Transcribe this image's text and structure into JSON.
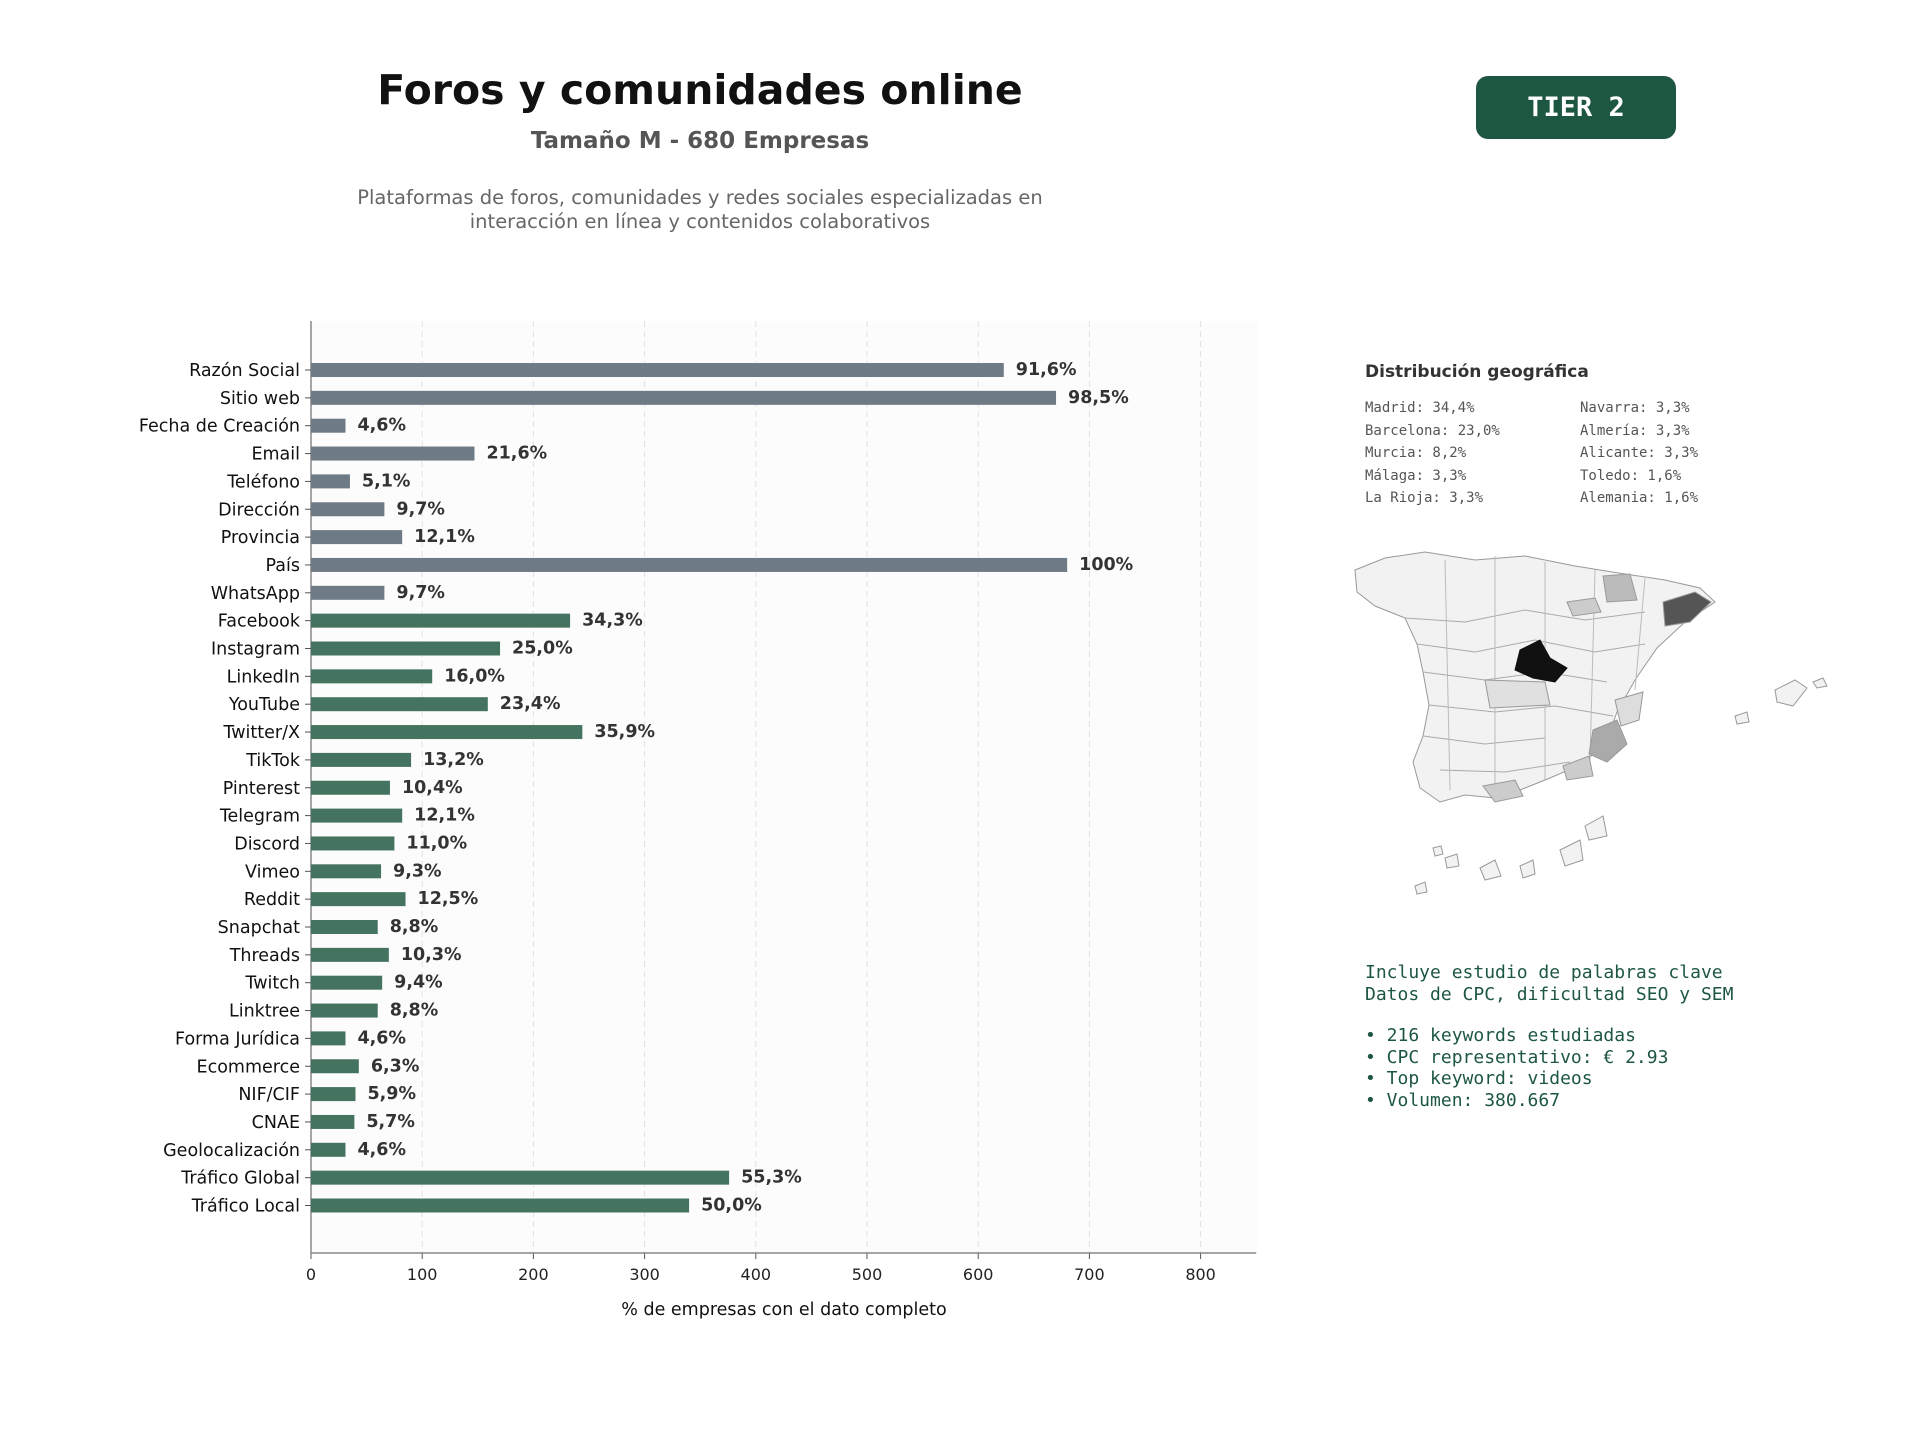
{
  "header": {
    "title": "Foros y comunidades online",
    "subtitle": "Tamaño M - 680 Empresas",
    "description_line1": "Plataformas de foros, comunidades y redes sociales especializadas en",
    "description_line2": "interacción en línea y contenidos colaborativos",
    "tier_label": "TIER 2"
  },
  "colors": {
    "basic_bar": "#6e7a85",
    "social_bar": "#44735f",
    "tier_badge": "#1d5742",
    "keyword_text": "#1d5742"
  },
  "geo": {
    "title": "Distribución geográfica",
    "items": [
      "Madrid: 34,4%",
      "Navarra: 3,3%",
      "Barcelona: 23,0%",
      "Almería: 3,3%",
      "Murcia: 8,2%",
      "Alicante: 3,3%",
      "Málaga: 3,3%",
      "Toledo: 1,6%",
      "La Rioja: 3,3%",
      "Alemania: 1,6%"
    ],
    "map_icon": "spain-provinces-map-icon"
  },
  "keywords": {
    "line1": "Incluye estudio de palabras clave",
    "line2": "Datos de CPC, dificultad SEO y SEM",
    "bullets": [
      "• 216 keywords estudiadas",
      "• CPC representativo: € 2.93",
      "• Top keyword: videos",
      "• Volumen: 380.667"
    ]
  },
  "chart_data": {
    "type": "bar",
    "orientation": "horizontal",
    "xlabel": "% de empresas con el dato completo",
    "ylabel": "",
    "xlim": [
      0,
      850
    ],
    "xticks": [
      0,
      100,
      200,
      300,
      400,
      500,
      600,
      700,
      800
    ],
    "grid": "vertical dashed",
    "categories": [
      "Razón Social",
      "Sitio web",
      "Fecha de Creación",
      "Email",
      "Teléfono",
      "Dirección",
      "Provincia",
      "País",
      "WhatsApp",
      "Facebook",
      "Instagram",
      "LinkedIn",
      "YouTube",
      "Twitter/X",
      "TikTok",
      "Pinterest",
      "Telegram",
      "Discord",
      "Vimeo",
      "Reddit",
      "Snapchat",
      "Threads",
      "Twitch",
      "Linktree",
      "Forma Jurídica",
      "Ecommerce",
      "NIF/CIF",
      "CNAE",
      "Geolocalización",
      "Tráfico Global",
      "Tráfico Local"
    ],
    "values": [
      623,
      670,
      31,
      147,
      35,
      66,
      82,
      680,
      66,
      233,
      170,
      109,
      159,
      244,
      90,
      71,
      82,
      75,
      63,
      85,
      60,
      70,
      64,
      60,
      31,
      43,
      40,
      39,
      31,
      376,
      340
    ],
    "labels": [
      "91,6%",
      "98,5%",
      "4,6%",
      "21,6%",
      "5,1%",
      "9,7%",
      "12,1%",
      "100%",
      "9,7%",
      "34,3%",
      "25,0%",
      "16,0%",
      "23,4%",
      "35,9%",
      "13,2%",
      "10,4%",
      "12,1%",
      "11,0%",
      "9,3%",
      "12,5%",
      "8,8%",
      "10,3%",
      "9,4%",
      "8,8%",
      "4,6%",
      "6,3%",
      "5,9%",
      "5,7%",
      "4,6%",
      "55,3%",
      "50,0%"
    ],
    "groups": [
      "basic",
      "basic",
      "basic",
      "basic",
      "basic",
      "basic",
      "basic",
      "basic",
      "basic",
      "social",
      "social",
      "social",
      "social",
      "social",
      "social",
      "social",
      "social",
      "social",
      "social",
      "social",
      "social",
      "social",
      "social",
      "social",
      "social",
      "social",
      "social",
      "social",
      "social",
      "social",
      "social"
    ]
  }
}
